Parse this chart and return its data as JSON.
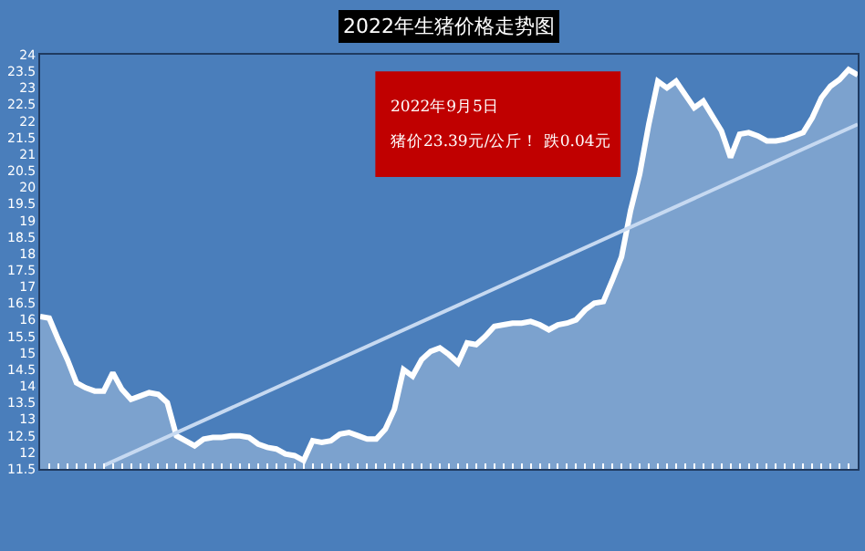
{
  "chart_data": {
    "type": "area",
    "title": "2022年生猪价格走势图",
    "categories": [
      null,
      null,
      null,
      null,
      null,
      null,
      null,
      null,
      null,
      null,
      null,
      null,
      null,
      null,
      null,
      null,
      null,
      null,
      null,
      null,
      null,
      null,
      null,
      null,
      null,
      null,
      null,
      null,
      null,
      null,
      null,
      null,
      null,
      null,
      null,
      null,
      null,
      null,
      null,
      null,
      null,
      null,
      null,
      null,
      null,
      null,
      null,
      null,
      null,
      null,
      null,
      null,
      null,
      null,
      null,
      null,
      null,
      null,
      null,
      null,
      null,
      null,
      null,
      null,
      null,
      null,
      null,
      null,
      null,
      null,
      null,
      null,
      null,
      null,
      null,
      null,
      null,
      null,
      null,
      null,
      null,
      null,
      null,
      null,
      null,
      null,
      null,
      null,
      null,
      null,
      null
    ],
    "series": [
      {
        "color": "#ffffff",
        "values": [
          16.1,
          16.05,
          15.4,
          14.8,
          14.1,
          13.95,
          13.85,
          13.85,
          14.4,
          13.9,
          13.6,
          13.7,
          13.8,
          13.75,
          13.5,
          12.5,
          12.35,
          12.2,
          12.4,
          12.45,
          12.45,
          12.5,
          12.5,
          12.45,
          12.25,
          12.15,
          12.1,
          11.95,
          11.9,
          11.75,
          12.35,
          12.3,
          12.35,
          12.55,
          12.6,
          12.5,
          12.4,
          12.4,
          12.7,
          13.3,
          14.5,
          14.3,
          14.8,
          15.05,
          15.15,
          14.95,
          14.7,
          15.3,
          15.25,
          15.5,
          15.8,
          15.85,
          15.9,
          15.9,
          15.95,
          15.85,
          15.7,
          15.85,
          15.9,
          16.0,
          16.3,
          16.5,
          16.55,
          17.2,
          17.9,
          19.3,
          20.4,
          21.9,
          23.2,
          23.0,
          23.2,
          22.8,
          22.4,
          22.6,
          22.15,
          21.7,
          20.9,
          21.6,
          21.65,
          21.55,
          21.4,
          21.4,
          21.45,
          21.55,
          21.65,
          22.1,
          22.7,
          23.05,
          23.25,
          23.55,
          23.39
        ]
      },
      {
        "type": "line",
        "color": "#c6d9f1",
        "values": [
          null,
          null,
          null,
          null,
          null,
          null,
          null,
          11.6,
          null,
          null,
          null,
          null,
          null,
          null,
          null,
          null,
          null,
          null,
          null,
          null,
          null,
          null,
          null,
          null,
          null,
          null,
          null,
          null,
          null,
          null,
          null,
          null,
          null,
          null,
          null,
          null,
          null,
          null,
          null,
          null,
          null,
          null,
          null,
          null,
          null,
          null,
          null,
          null,
          null,
          null,
          null,
          null,
          null,
          null,
          null,
          null,
          null,
          null,
          null,
          null,
          null,
          null,
          null,
          null,
          null,
          null,
          null,
          null,
          null,
          null,
          null,
          null,
          null,
          null,
          null,
          null,
          null,
          null,
          null,
          null,
          null,
          null,
          null,
          null,
          null,
          null,
          null,
          null,
          null,
          null,
          21.9
        ]
      }
    ],
    "ylim": [
      11.5,
      24
    ],
    "yticks": [
      11.5,
      12,
      12.5,
      13,
      13.5,
      14,
      14.5,
      15,
      15.5,
      16,
      16.5,
      17,
      17.5,
      18,
      18.5,
      19,
      19.5,
      20,
      20.5,
      21,
      21.5,
      22,
      22.5,
      23,
      23.5,
      24
    ],
    "annotations": [
      "2022年9月5日",
      "猪价23.39元/公斤！ 跌0.04元"
    ],
    "grid": false,
    "marker": "none",
    "line_style": "solid"
  }
}
